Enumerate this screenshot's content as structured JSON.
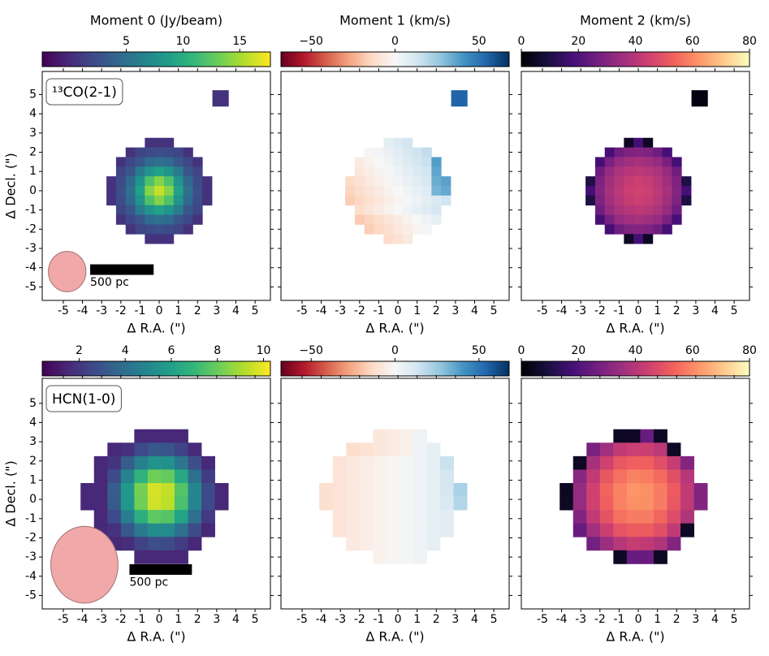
{
  "chart_data": [
    {
      "type": "heatmap",
      "title": "Moment 0 (Jy/beam)",
      "label": "¹³CO(2-1)",
      "colormap": "viridis",
      "clim": [
        -2.4,
        17.7
      ],
      "cticks": [
        5,
        10,
        15
      ],
      "xlim": [
        -6.1,
        5.8
      ],
      "ylim": [
        -5.7,
        6.2
      ],
      "xticks": [
        -5,
        -4,
        -3,
        -2,
        -1,
        0,
        1,
        2,
        3,
        4,
        5
      ],
      "yticks": [
        -5,
        -4,
        -3,
        -2,
        -1,
        0,
        1,
        2,
        3,
        4,
        5
      ],
      "ytick_labels": true,
      "xlabel": "Δ R.A. (\")",
      "ylabel": "Δ Decl. (\")",
      "cell": 0.5,
      "x": [
        -2.5,
        -2,
        -1.5,
        -1,
        -0.5,
        0,
        0.5,
        1,
        1.5,
        2,
        2.5
      ],
      "y": [
        2.5,
        2,
        1.5,
        1,
        0.5,
        0,
        -0.5,
        -1,
        -1.5,
        -2,
        -2.5
      ],
      "z": [
        [
          null,
          null,
          null,
          null,
          0.5,
          0.5,
          0.5,
          null,
          null,
          null,
          null
        ],
        [
          null,
          null,
          0.5,
          1.8,
          2.2,
          2.5,
          2.2,
          1.8,
          0.5,
          null,
          null
        ],
        [
          null,
          0.5,
          2,
          3,
          4.5,
          5,
          4.5,
          3,
          2,
          0.5,
          null
        ],
        [
          null,
          1.8,
          3,
          6,
          8,
          9,
          8,
          6,
          3,
          1.8,
          null
        ],
        [
          0.5,
          2.2,
          4.5,
          8,
          12,
          14,
          12,
          8,
          4.5,
          2.2,
          0.5
        ],
        [
          0.5,
          2.5,
          5,
          9,
          14,
          16,
          14,
          9,
          5,
          2.5,
          0.5
        ],
        [
          0.5,
          2.2,
          4.5,
          8,
          12,
          14,
          12,
          8,
          4.5,
          2.2,
          0.5
        ],
        [
          null,
          1.8,
          3,
          6,
          8,
          9,
          8,
          6,
          3,
          1.8,
          null
        ],
        [
          null,
          0.5,
          2,
          3,
          4.5,
          5,
          4.5,
          3,
          2,
          0.5,
          null
        ],
        [
          null,
          null,
          0.5,
          1.8,
          2.2,
          2.5,
          2.2,
          1.8,
          0.5,
          null,
          null
        ],
        [
          null,
          null,
          null,
          null,
          0.5,
          0.5,
          0.5,
          null,
          null,
          null,
          null
        ]
      ],
      "extra": {
        "x": 3.2,
        "y": 4.8,
        "size": 0.85,
        "value": 0.5
      },
      "beam": {
        "x": -4.8,
        "y": -4.2,
        "width": 1.95,
        "height": 2.1
      },
      "scalebar": {
        "label": "500 pc",
        "x": -3.6,
        "y": -4.1,
        "length": 3.3
      }
    },
    {
      "type": "heatmap",
      "title": "Moment 1 (km/s)",
      "colormap": "RdBu_r",
      "clim": [
        -68,
        68
      ],
      "cticks": [
        {
          "value": -50,
          "label": "−50"
        },
        0,
        50
      ],
      "xlim": [
        -6.1,
        5.8
      ],
      "ylim": [
        -5.7,
        6.2
      ],
      "xticks": [
        -5,
        -4,
        -3,
        -2,
        -1,
        0,
        1,
        2,
        3,
        4,
        5
      ],
      "yticks": [
        -5,
        -4,
        -3,
        -2,
        -1,
        0,
        1,
        2,
        3,
        4,
        5
      ],
      "ytick_labels": false,
      "xlabel": "Δ R.A. (\")",
      "cell": 0.5,
      "x": [
        -2.5,
        -2,
        -1.5,
        -1,
        -0.5,
        0,
        0.5,
        1,
        1.5,
        2,
        2.5
      ],
      "y": [
        2.5,
        2,
        1.5,
        1,
        0.5,
        0,
        -0.5,
        -1,
        -1.5,
        -2,
        -2.5
      ],
      "z": [
        [
          null,
          null,
          null,
          null,
          7,
          10,
          13,
          null,
          null,
          null,
          null
        ],
        [
          null,
          null,
          -1,
          2,
          5,
          8,
          11,
          14,
          17,
          null,
          null
        ],
        [
          null,
          -6,
          -3,
          0,
          3,
          6,
          9,
          12,
          15,
          38,
          null
        ],
        [
          null,
          -8,
          -5,
          -2,
          1,
          4,
          7,
          10,
          13,
          36,
          null
        ],
        [
          -13,
          -10,
          -7,
          -4,
          -1,
          2,
          5,
          8,
          11,
          34,
          37
        ],
        [
          -15,
          -12,
          -9,
          -6,
          -3,
          0,
          3,
          6,
          9,
          32,
          35
        ],
        [
          -17,
          -14,
          -11,
          -8,
          -5,
          -2,
          1,
          4,
          7,
          10,
          13
        ],
        [
          null,
          -12,
          -9,
          -6,
          -3,
          0,
          3,
          6,
          9,
          12,
          null
        ],
        [
          null,
          -18,
          -15,
          -12,
          -9,
          -6,
          -3,
          0,
          3,
          6,
          null
        ],
        [
          null,
          null,
          -17,
          -14,
          -11,
          -8,
          -5,
          -2,
          1,
          null,
          null
        ],
        [
          null,
          null,
          null,
          null,
          -13,
          -10,
          -7,
          null,
          null,
          null,
          null
        ]
      ],
      "extra": {
        "x": 3.2,
        "y": 4.8,
        "size": 0.85,
        "value": 55
      }
    },
    {
      "type": "heatmap",
      "title": "Moment 2 (km/s)",
      "colormap": "magma",
      "clim": [
        0,
        80
      ],
      "cticks": [
        0,
        20,
        40,
        60,
        80
      ],
      "xlim": [
        -6.1,
        5.8
      ],
      "ylim": [
        -5.7,
        6.2
      ],
      "xticks": [
        -5,
        -4,
        -3,
        -2,
        -1,
        0,
        1,
        2,
        3,
        4,
        5
      ],
      "yticks": [
        -5,
        -4,
        -3,
        -2,
        -1,
        0,
        1,
        2,
        3,
        4,
        5
      ],
      "ytick_labels": false,
      "xlabel": "Δ R.A. (\")",
      "cell": 0.5,
      "x": [
        -2.5,
        -2,
        -1.5,
        -1,
        -0.5,
        0,
        0.5,
        1,
        1.5,
        2,
        2.5
      ],
      "y": [
        2.5,
        2,
        1.5,
        1,
        0.5,
        0,
        -0.5,
        -1,
        -1.5,
        -2,
        -2.5
      ],
      "z": [
        [
          null,
          null,
          null,
          null,
          5,
          18,
          5,
          null,
          null,
          null,
          null
        ],
        [
          null,
          null,
          18,
          26,
          29,
          30,
          29,
          26,
          18,
          null,
          null
        ],
        [
          null,
          18,
          28,
          34,
          36,
          37,
          36,
          34,
          28,
          18,
          null
        ],
        [
          null,
          26,
          34,
          38,
          40,
          41,
          40,
          38,
          34,
          26,
          null
        ],
        [
          10,
          29,
          36,
          40,
          43,
          44,
          43,
          40,
          36,
          29,
          10
        ],
        [
          18,
          30,
          37,
          41,
          44,
          45,
          44,
          41,
          37,
          30,
          18
        ],
        [
          10,
          29,
          36,
          40,
          43,
          44,
          43,
          40,
          36,
          29,
          10
        ],
        [
          null,
          26,
          34,
          38,
          40,
          41,
          40,
          38,
          34,
          26,
          null
        ],
        [
          null,
          18,
          28,
          34,
          36,
          37,
          36,
          34,
          28,
          18,
          null
        ],
        [
          null,
          null,
          18,
          26,
          29,
          30,
          29,
          26,
          18,
          null,
          null
        ],
        [
          null,
          null,
          null,
          null,
          5,
          18,
          5,
          null,
          null,
          null,
          null
        ]
      ],
      "extra": {
        "x": 3.2,
        "y": 4.8,
        "size": 0.85,
        "value": 2
      }
    },
    {
      "type": "heatmap",
      "label": "HCN(1-0)",
      "colormap": "viridis",
      "clim": [
        0.4,
        10.3
      ],
      "cticks": [
        2,
        4,
        6,
        8,
        10
      ],
      "xlim": [
        -6.1,
        5.8
      ],
      "ylim": [
        -5.7,
        6.3
      ],
      "xticks": [
        -5,
        -4,
        -3,
        -2,
        -1,
        0,
        1,
        2,
        3,
        4,
        5
      ],
      "yticks": [
        -5,
        -4,
        -3,
        -2,
        -1,
        0,
        1,
        2,
        3,
        4,
        5
      ],
      "ytick_labels": true,
      "xlabel": "Δ R.A. (\")",
      "ylabel": "Δ Decl. (\")",
      "cell": 0.7,
      "x": [
        -3.75,
        -3.05,
        -2.35,
        -1.65,
        -0.95,
        -0.25,
        0.45,
        1.15,
        1.85,
        2.55,
        3.25
      ],
      "y": [
        3.3,
        2.6,
        1.9,
        1.2,
        0.5,
        -0.2,
        -0.9,
        -1.6,
        -2.3,
        -3.0
      ],
      "z": [
        [
          null,
          null,
          null,
          null,
          1.5,
          1.5,
          1.5,
          1.5,
          null,
          null,
          null
        ],
        [
          null,
          null,
          1.5,
          1.8,
          2.6,
          3.1,
          3,
          2.4,
          1.6,
          null,
          null
        ],
        [
          null,
          1.5,
          1.9,
          3.3,
          4.7,
          5.5,
          5.4,
          4.3,
          2.8,
          1.5,
          null
        ],
        [
          null,
          1.5,
          2.7,
          4.8,
          6.8,
          8.1,
          7.9,
          6.3,
          4.1,
          2.2,
          null
        ],
        [
          1.5,
          1.5,
          3.3,
          5.7,
          8.2,
          9.7,
          9.4,
          7.6,
          5,
          2.7,
          1.5
        ],
        [
          1.5,
          1.5,
          3.2,
          5.6,
          8.1,
          9.6,
          9.3,
          7.4,
          4.9,
          2.6,
          1.5
        ],
        [
          null,
          1.5,
          2.6,
          4.6,
          6.6,
          7.8,
          7.6,
          6.1,
          4,
          2.1,
          null
        ],
        [
          null,
          1.5,
          1.8,
          3.1,
          4.4,
          5.2,
          5.1,
          4.1,
          2.7,
          1.5,
          null
        ],
        [
          null,
          null,
          1.5,
          1.7,
          2.4,
          2.8,
          2.7,
          2.2,
          1.5,
          null,
          null
        ],
        [
          null,
          null,
          null,
          null,
          1.5,
          1.5,
          1.5,
          1.5,
          null,
          null,
          null
        ]
      ],
      "beam": {
        "x": -3.9,
        "y": -3.4,
        "width": 3.5,
        "height": 4.0
      },
      "scalebar": {
        "label": "500 pc",
        "x": -1.55,
        "y": -3.65,
        "length": 3.25
      }
    },
    {
      "type": "heatmap",
      "colormap": "RdBu_r",
      "clim": [
        -68,
        68
      ],
      "cticks": [
        {
          "value": -50,
          "label": "−50"
        },
        0,
        50
      ],
      "xlim": [
        -6.1,
        5.8
      ],
      "ylim": [
        -5.7,
        6.3
      ],
      "xticks": [
        -5,
        -4,
        -3,
        -2,
        -1,
        0,
        1,
        2,
        3,
        4,
        5
      ],
      "yticks": [
        -5,
        -4,
        -3,
        -2,
        -1,
        0,
        1,
        2,
        3,
        4,
        5
      ],
      "ytick_labels": false,
      "xlabel": "Δ R.A. (\")",
      "cell": 0.7,
      "x": [
        -3.75,
        -3.05,
        -2.35,
        -1.65,
        -0.95,
        -0.25,
        0.45,
        1.15,
        1.85,
        2.55,
        3.25
      ],
      "y": [
        3.3,
        2.6,
        1.9,
        1.2,
        0.5,
        -0.2,
        -0.9,
        -1.6,
        -2.3,
        -3.0
      ],
      "z": [
        [
          null,
          null,
          null,
          null,
          -8,
          -6,
          -4,
          3,
          null,
          null,
          null
        ],
        [
          null,
          null,
          -12,
          -10,
          -8,
          -6,
          -4,
          3,
          6,
          null,
          null
        ],
        [
          null,
          -9,
          -7,
          -5,
          -3,
          -1,
          1,
          3,
          6,
          15,
          null
        ],
        [
          null,
          -9,
          -7,
          -5,
          -3,
          -1,
          1,
          3,
          6,
          12,
          null
        ],
        [
          -11,
          -9,
          -7,
          -5,
          -3,
          -1,
          1,
          3,
          6,
          12,
          22
        ],
        [
          -11,
          -9,
          -7,
          -5,
          -3,
          -1,
          1,
          3,
          6,
          10,
          20
        ],
        [
          null,
          -9,
          -7,
          -5,
          -3,
          -1,
          1,
          3,
          6,
          8,
          null
        ],
        [
          null,
          -9,
          -7,
          -5,
          -3,
          -1,
          1,
          3,
          6,
          8,
          null
        ],
        [
          null,
          null,
          -7,
          -5,
          -3,
          -1,
          1,
          3,
          6,
          null,
          null
        ],
        [
          null,
          null,
          null,
          null,
          -3,
          -1,
          1,
          3,
          null,
          null,
          null
        ]
      ]
    },
    {
      "type": "heatmap",
      "colormap": "magma",
      "clim": [
        0,
        80
      ],
      "cticks": [
        0,
        20,
        40,
        60,
        80
      ],
      "xlim": [
        -6.1,
        5.8
      ],
      "ylim": [
        -5.7,
        6.3
      ],
      "xticks": [
        -5,
        -4,
        -3,
        -2,
        -1,
        0,
        1,
        2,
        3,
        4,
        5
      ],
      "yticks": [
        -5,
        -4,
        -3,
        -2,
        -1,
        0,
        1,
        2,
        3,
        4,
        5
      ],
      "ytick_labels": false,
      "xlabel": "Δ R.A. (\")",
      "cell": 0.7,
      "x": [
        -3.75,
        -3.05,
        -2.35,
        -1.65,
        -0.95,
        -0.25,
        0.45,
        1.15,
        1.85,
        2.55,
        3.25
      ],
      "y": [
        3.3,
        2.6,
        1.9,
        1.2,
        0.5,
        -0.2,
        -0.9,
        -1.6,
        -2.3,
        -3.0
      ],
      "z": [
        [
          null,
          null,
          null,
          null,
          5,
          5,
          25,
          5,
          null,
          null,
          null
        ],
        [
          null,
          null,
          28,
          36,
          42,
          44,
          44,
          41,
          5,
          null,
          null
        ],
        [
          null,
          5,
          37,
          45,
          51,
          53,
          53,
          49,
          43,
          30,
          null
        ],
        [
          null,
          31,
          42,
          51,
          56,
          59,
          58,
          55,
          49,
          40,
          null
        ],
        [
          5,
          34,
          45,
          54,
          59,
          62,
          61,
          58,
          52,
          42,
          30
        ],
        [
          5,
          34,
          45,
          53,
          59,
          61,
          61,
          58,
          51,
          42,
          30
        ],
        [
          null,
          30,
          42,
          50,
          56,
          58,
          58,
          54,
          48,
          39,
          null
        ],
        [
          null,
          25,
          36,
          44,
          50,
          52,
          52,
          49,
          42,
          5,
          null
        ],
        [
          null,
          null,
          27,
          35,
          40,
          43,
          42,
          39,
          30,
          null,
          null
        ],
        [
          null,
          null,
          null,
          null,
          5,
          25,
          25,
          5,
          null,
          null,
          null
        ]
      ]
    }
  ]
}
